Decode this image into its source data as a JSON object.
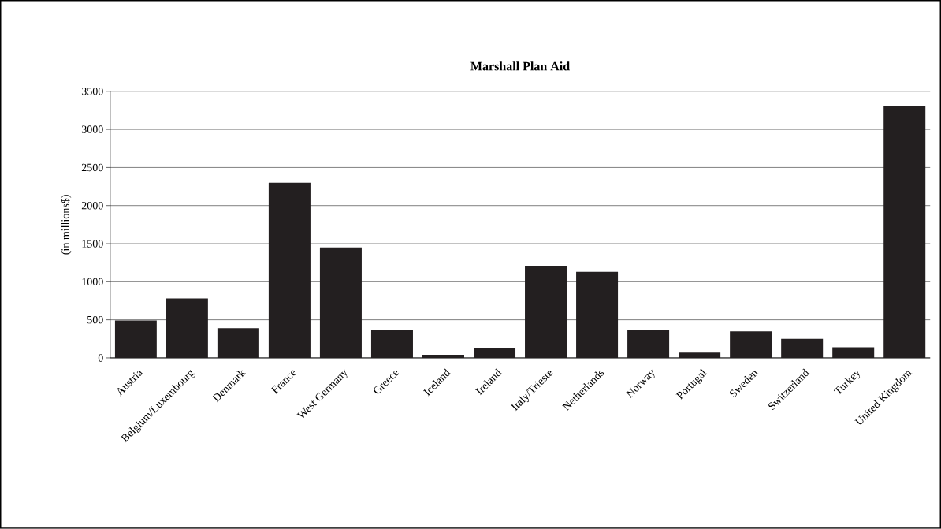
{
  "chart_data": {
    "type": "bar",
    "title": "Marshall Plan Aid",
    "ylabel": "(in millions$)",
    "categories": [
      "Austria",
      "Belgium/Luxembourg",
      "Denmark",
      "France",
      "West Germany",
      "Greece",
      "Iceland",
      "Ireland",
      "Italy/Trieste",
      "Netherlands",
      "Norway",
      "Portugal",
      "Sweden",
      "Switzerland",
      "Turkey",
      "United Kingdom"
    ],
    "values": [
      490,
      780,
      390,
      2300,
      1450,
      370,
      40,
      130,
      1200,
      1130,
      370,
      70,
      350,
      250,
      140,
      3300
    ],
    "color": "#231f20",
    "ylim": [
      0,
      3500
    ],
    "yticks": [
      0,
      500,
      1000,
      1500,
      2000,
      2500,
      3000,
      3500
    ],
    "grid": "y"
  }
}
